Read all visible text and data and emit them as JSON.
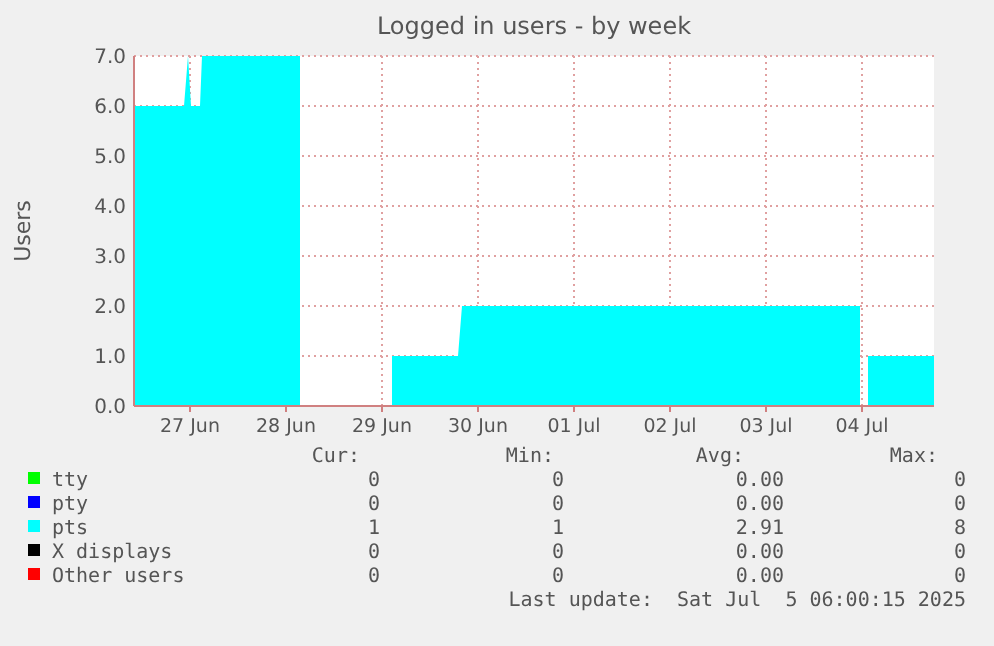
{
  "chart_data": {
    "type": "area",
    "title": "Logged in users - by week",
    "ylabel": "Users",
    "xlim": [
      "2025-06-26T22:00",
      "2025-07-05T06:00"
    ],
    "xticks": [
      {
        "value": "2025-06-27T12:00",
        "label": "27 Jun"
      },
      {
        "value": "2025-06-28T12:00",
        "label": "28 Jun"
      },
      {
        "value": "2025-06-29T12:00",
        "label": "29 Jun"
      },
      {
        "value": "2025-06-30T12:00",
        "label": "30 Jun"
      },
      {
        "value": "2025-07-01T12:00",
        "label": "01 Jul"
      },
      {
        "value": "2025-07-02T12:00",
        "label": "02 Jul"
      },
      {
        "value": "2025-07-03T12:00",
        "label": "03 Jul"
      },
      {
        "value": "2025-07-04T12:00",
        "label": "04 Jul"
      }
    ],
    "ylim": [
      0,
      7
    ],
    "yticks": [
      {
        "value": 0,
        "label": "0.0"
      },
      {
        "value": 1,
        "label": "1.0"
      },
      {
        "value": 2,
        "label": "2.0"
      },
      {
        "value": 3,
        "label": "3.0"
      },
      {
        "value": 4,
        "label": "4.0"
      },
      {
        "value": 5,
        "label": "5.0"
      },
      {
        "value": 6,
        "label": "6.0"
      },
      {
        "value": 7,
        "label": "7.0"
      }
    ],
    "grid": true,
    "legend": "bottom",
    "series": [
      {
        "name": "tty",
        "color": "#00ff00"
      },
      {
        "name": "pty",
        "color": "#0000ff"
      },
      {
        "name": "pts",
        "color": "#00ffff",
        "x": [
          "2025-06-26T22:00",
          "2025-06-27T10:30",
          "2025-06-27T11:30",
          "2025-06-27T12:15",
          "2025-06-27T14:30",
          "2025-06-27T15:00",
          "2025-06-28T15:30",
          "2025-06-28T16:00",
          "2025-06-29T14:30",
          "2025-06-30T07:00",
          "2025-06-30T08:00",
          "2025-07-04T11:30",
          "2025-07-04T12:30",
          "2025-07-04T13:30",
          "2025-07-05T06:00"
        ],
        "values": [
          6,
          6,
          7,
          6,
          6,
          7,
          7,
          null,
          1,
          1,
          2,
          2,
          null,
          1,
          1
        ]
      },
      {
        "name": "X displays",
        "color": "#000000"
      },
      {
        "name": "Other users",
        "color": "#ff0000"
      }
    ],
    "annotations": [
      "Cur:",
      "Min:",
      "Avg:",
      "Max:",
      "0",
      "0",
      "0.00",
      "0",
      "0",
      "0",
      "0.00",
      "0",
      "1",
      "1",
      "2.91",
      "8",
      "0",
      "0",
      "0.00",
      "0",
      "0",
      "0",
      "0.00",
      "0",
      "Last update:  Sat Jul  5 06:00:15 2025"
    ]
  }
}
